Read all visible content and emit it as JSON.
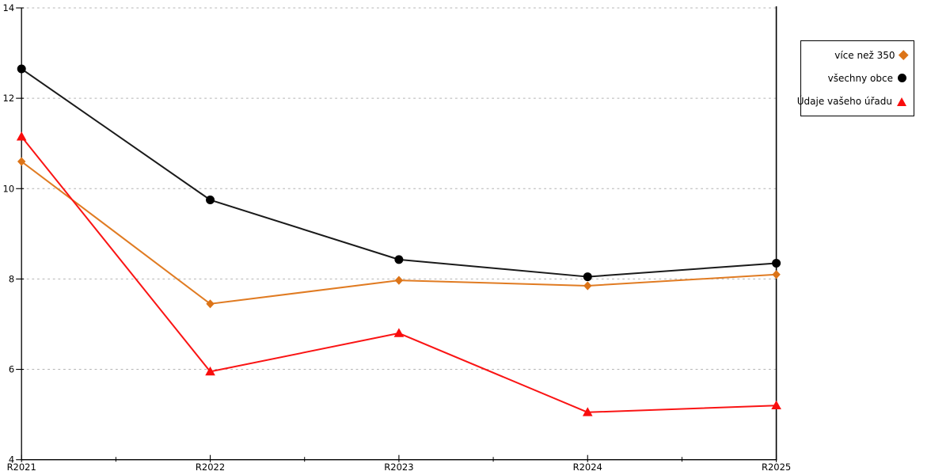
{
  "chart_data": {
    "type": "line",
    "title": "",
    "xlabel": "",
    "ylabel": "",
    "categories": [
      "R2021",
      "R2022",
      "R2023",
      "R2024",
      "R2025"
    ],
    "series": [
      {
        "name": "více než 350",
        "marker": "diamond",
        "color": "#DC7418",
        "line_color": "#E07B22",
        "values": [
          10.6,
          7.45,
          7.97,
          7.85,
          8.1
        ]
      },
      {
        "name": "všechny obce",
        "marker": "circle",
        "color": "#000000",
        "line_color": "#1A1A1A",
        "values": [
          12.65,
          9.75,
          8.43,
          8.05,
          8.35
        ]
      },
      {
        "name": "Údaje vašeho úřadu",
        "marker": "triangle",
        "color": "#F90D0D",
        "line_color": "#FA1414",
        "values": [
          11.15,
          5.95,
          6.8,
          5.05,
          5.2
        ]
      }
    ],
    "ylim": [
      4,
      14
    ],
    "yticks": [
      4,
      6,
      8,
      10,
      12,
      14
    ],
    "grid": "horizontal-dotted",
    "grid_color": "#B4B4B4",
    "axis_color": "#000000",
    "legend_position": "outside-right-top"
  }
}
